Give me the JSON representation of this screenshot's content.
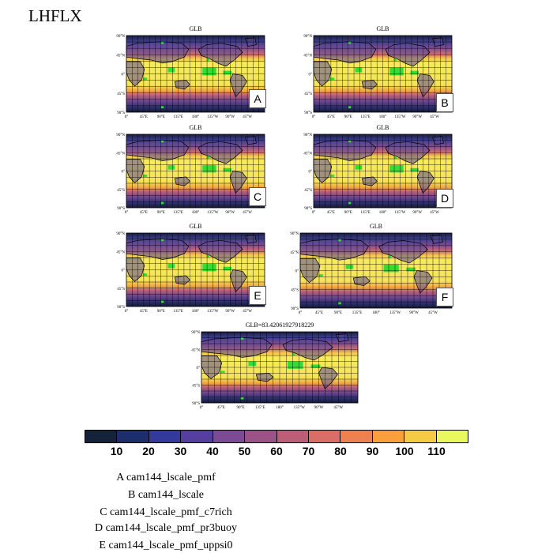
{
  "title": "LHFLX",
  "panels": [
    {
      "id": "A",
      "title": "GLB"
    },
    {
      "id": "B",
      "title": "GLB"
    },
    {
      "id": "C",
      "title": "GLB"
    },
    {
      "id": "D",
      "title": "GLB"
    },
    {
      "id": "E",
      "title": "GLB"
    },
    {
      "id": "F",
      "title": "GLB"
    },
    {
      "id": "",
      "title": "GLB=83.42061927918229"
    }
  ],
  "lat_ticks": [
    "90°N",
    "45°N",
    "0°",
    "45°S",
    "90°S"
  ],
  "lon_ticks": [
    "0°",
    "45°E",
    "90°E",
    "135°E",
    "180°",
    "135°W",
    "90°W",
    "45°W"
  ],
  "colorbar": {
    "colors": [
      "#14233a",
      "#1c2f6b",
      "#343a9a",
      "#553f9e",
      "#7d4b94",
      "#9b5287",
      "#bb5f79",
      "#d86e66",
      "#ee8150",
      "#f9a03a",
      "#f6cb44",
      "#e9f85b"
    ],
    "labels": [
      "10",
      "20",
      "30",
      "40",
      "50",
      "60",
      "70",
      "80",
      "90",
      "100",
      "110"
    ]
  },
  "legend": [
    "A  cam144_lscale_pmf",
    "B  cam144_lscale",
    "C  cam144_lscale_pmf_c7rich",
    "D  cam144_lscale_pmf_pr3buoy",
    "E  cam144_lscale_pmf_uppsi0"
  ]
}
